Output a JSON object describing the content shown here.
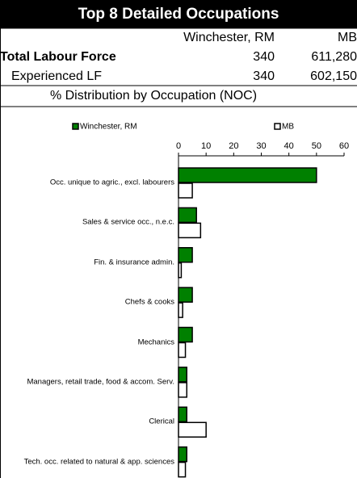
{
  "header": {
    "title": "Top 8 Detailed Occupations"
  },
  "table": {
    "columns": [
      "Winchester, RM",
      "MB"
    ],
    "rows": [
      [
        "Total Labour Force",
        "340",
        "611,280"
      ],
      [
        "Experienced LF",
        "340",
        "602,150"
      ]
    ],
    "section": "% Distribution by Occupation (NOC)"
  },
  "chart_data": {
    "type": "hbar",
    "categories": [
      "Occ. unique to agric., excl. labourers",
      "Sales & service occ., n.e.c.",
      "Fin. & insurance admin.",
      "Chefs & cooks",
      "Mechanics",
      "Managers, retail trade, food & accom. Serv.",
      "Clerical",
      "Tech. occ. related to natural & app. sciences"
    ],
    "series": [
      {
        "name": "Winchester, RM",
        "color": "#008000",
        "values": [
          50,
          6.5,
          5,
          5,
          5,
          3,
          3,
          3
        ]
      },
      {
        "name": "MB",
        "color": "#ffffff",
        "values": [
          5,
          8,
          1,
          1.5,
          2.5,
          3,
          10,
          2.5
        ]
      }
    ],
    "xlim": [
      0,
      60
    ],
    "xticks": [
      0,
      10,
      20,
      30,
      40,
      50,
      60
    ],
    "legend": "top"
  }
}
